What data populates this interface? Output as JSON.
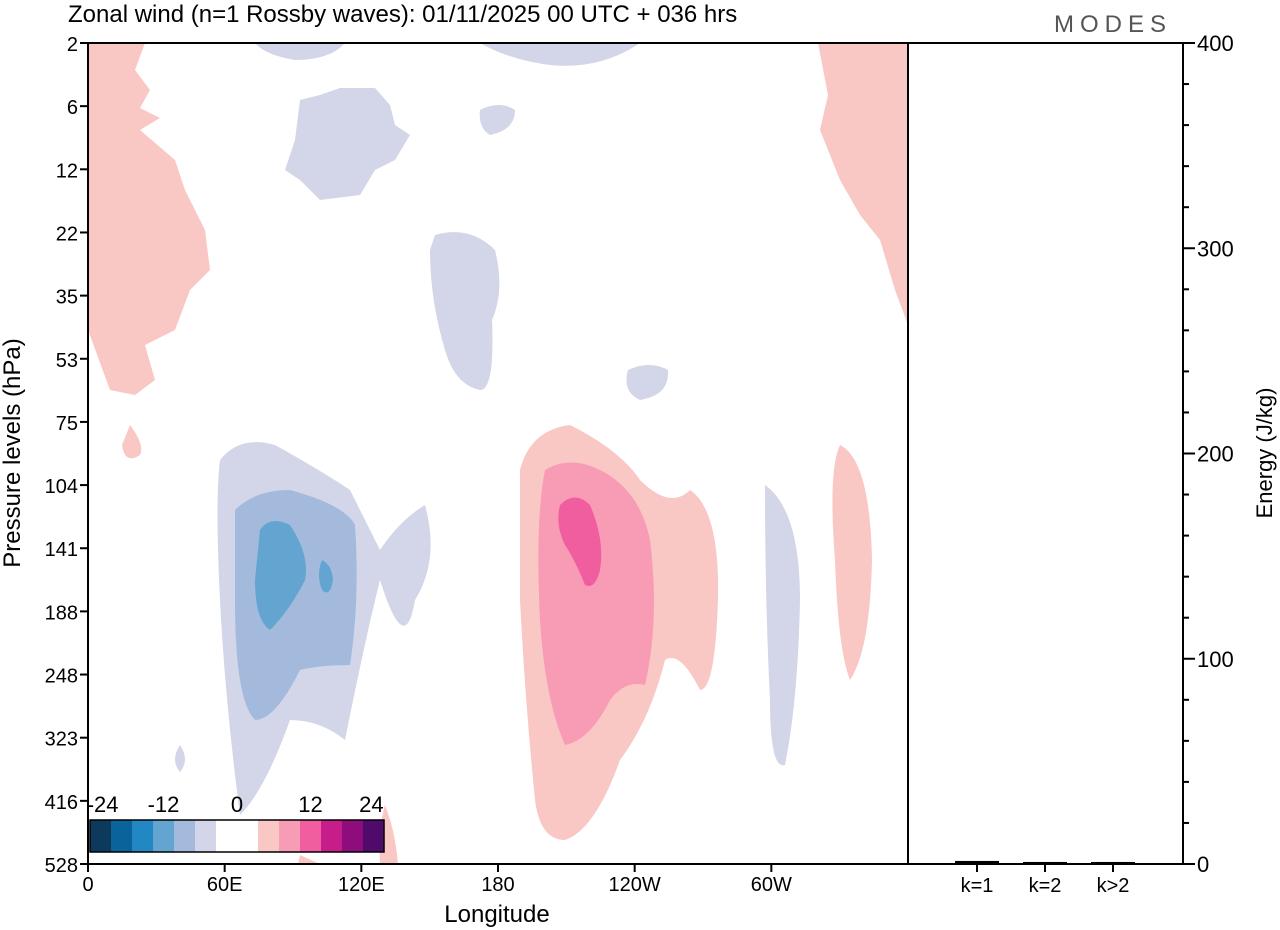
{
  "chart_data": [
    {
      "type": "heatmap",
      "title": "Zonal wind (n=1 Rossby waves):  01/11/2025  00 UTC  + 036 hrs",
      "brand": "MODES",
      "xlabel": "Longitude",
      "ylabel": "Pressure levels (hPa)",
      "x_ticks": [
        "0",
        "60E",
        "120E",
        "180",
        "120W",
        "60W"
      ],
      "y_ticks": [
        "2",
        "6",
        "12",
        "22",
        "35",
        "53",
        "75",
        "104",
        "141",
        "188",
        "248",
        "323",
        "416",
        "528"
      ],
      "colorbar": {
        "tick_labels": [
          "-24",
          "-12",
          "0",
          "12",
          "24"
        ],
        "colors": [
          "#0d3a5c",
          "#08649b",
          "#2188c3",
          "#63a5d0",
          "#a3badc",
          "#d3d5e8",
          "#ffffff",
          "#fac8c4",
          "#f89bb5",
          "#f05e9f",
          "#c71d8b",
          "#8e0c7c",
          "#500a6b"
        ]
      },
      "features": [
        {
          "sign": "negative",
          "max_level": "-12",
          "center_lon": 75,
          "center_hPa": 165
        },
        {
          "sign": "positive",
          "max_level": "12",
          "center_lon": 200,
          "center_hPa": 141
        },
        {
          "sign": "negative",
          "max_level": "-6",
          "center_lon": 295,
          "center_hPa": 188
        },
        {
          "sign": "positive",
          "max_level": "6",
          "center_lon": 325,
          "center_hPa": 188
        }
      ]
    },
    {
      "type": "bar",
      "categories": [
        "k=1",
        "k=2",
        "k>2"
      ],
      "values": [
        1,
        0.5,
        0.5
      ],
      "ylabel": "Energy (J/kg)",
      "ylim": [
        0,
        400
      ],
      "y_ticks": [
        "0",
        "100",
        "200",
        "300",
        "400"
      ]
    }
  ]
}
